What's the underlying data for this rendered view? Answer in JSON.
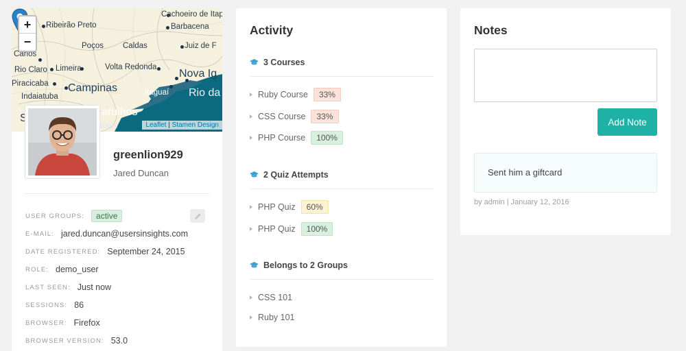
{
  "map": {
    "zoom_in": "+",
    "zoom_out": "−",
    "attribution": {
      "leaflet": "Leaflet",
      "separator": "|",
      "stamen": "Stamen Design"
    },
    "places": [
      "Cachoeiro de Itap",
      "Ribeirão Preto",
      "Barbacena",
      "Poços",
      "Caldas",
      "Juiz de F",
      "Carlos",
      "Rio Claro",
      "Limeira",
      "Volta Redonda",
      "Nova Ig",
      "Piracicaba",
      "Campinas",
      "Rio da",
      "Indaiatuba",
      "Itaguaí",
      "S",
      "arulhos",
      "antos"
    ]
  },
  "profile": {
    "username": "greenlion929",
    "full_name": "Jared Duncan",
    "fields": [
      {
        "label": "User Groups:",
        "value": "active"
      },
      {
        "label": "E-mail:",
        "value": "jared.duncan@usersinsights.com"
      },
      {
        "label": "Date registered:",
        "value": "September 24, 2015"
      },
      {
        "label": "Role:",
        "value": "demo_user"
      },
      {
        "label": "Last seen:",
        "value": "Just now"
      },
      {
        "label": "Sessions:",
        "value": "86"
      },
      {
        "label": "Browser:",
        "value": "Firefox"
      },
      {
        "label": "Browser version:",
        "value": "53.0"
      }
    ]
  },
  "activity": {
    "title": "Activity",
    "sections": [
      {
        "heading": "3 Courses",
        "icon": "graduation-cap-icon",
        "items": [
          {
            "label": "Ruby Course",
            "percent": "33%"
          },
          {
            "label": "CSS Course",
            "percent": "33%"
          },
          {
            "label": "PHP Course",
            "percent": "100%"
          }
        ]
      },
      {
        "heading": "2 Quiz Attempts",
        "icon": "graduation-cap-icon",
        "items": [
          {
            "label": "PHP Quiz",
            "percent": "60%"
          },
          {
            "label": "PHP Quiz",
            "percent": "100%"
          }
        ]
      },
      {
        "heading": "Belongs to 2 Groups",
        "icon": "graduation-cap-icon",
        "items": [
          {
            "label": "CSS 101"
          },
          {
            "label": "Ruby 101"
          }
        ]
      }
    ]
  },
  "notes": {
    "title": "Notes",
    "input_value": "",
    "add_button": "Add Note",
    "entries": [
      {
        "text": "Sent him a giftcard",
        "author_prefix": "by admin",
        "separator": "|",
        "date": "January 12, 2016"
      }
    ]
  },
  "colors": {
    "accent": "#1eb2a6",
    "map_sea": "#0c6a80",
    "pct_low": "#fbe3dc",
    "pct_mid": "#fdf3d3",
    "pct_high": "#d9f0df"
  }
}
